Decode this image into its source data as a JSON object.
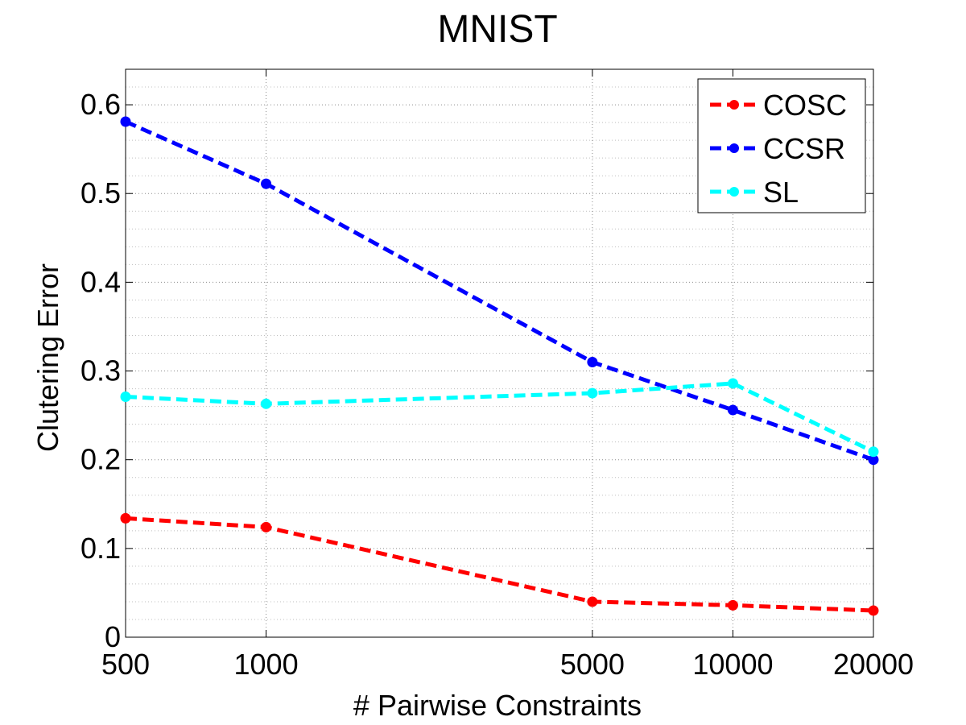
{
  "chart_data": {
    "type": "line",
    "title": "MNIST",
    "xlabel": "# Pairwise Constraints",
    "ylabel": "Clutering Error",
    "x_scale": "log",
    "categories": [
      "500",
      "1000",
      "5000",
      "10000",
      "20000"
    ],
    "x": [
      500,
      1000,
      5000,
      10000,
      20000
    ],
    "ylim": [
      0,
      0.64
    ],
    "yticks": [
      0,
      0.1,
      0.2,
      0.3,
      0.4,
      0.5,
      0.6
    ],
    "ytick_labels": [
      "0",
      "0.1",
      "0.2",
      "0.3",
      "0.4",
      "0.5",
      "0.6"
    ],
    "grid": true,
    "legend_position": "top-right",
    "series": [
      {
        "name": "COSC",
        "color": "#ff0000",
        "values": [
          0.134,
          0.124,
          0.04,
          0.036,
          0.03
        ]
      },
      {
        "name": "CCSR",
        "color": "#0000ff",
        "values": [
          0.581,
          0.511,
          0.31,
          0.256,
          0.2
        ]
      },
      {
        "name": "SL",
        "color": "#00ffff",
        "values": [
          0.271,
          0.263,
          0.275,
          0.286,
          0.209
        ]
      }
    ]
  }
}
